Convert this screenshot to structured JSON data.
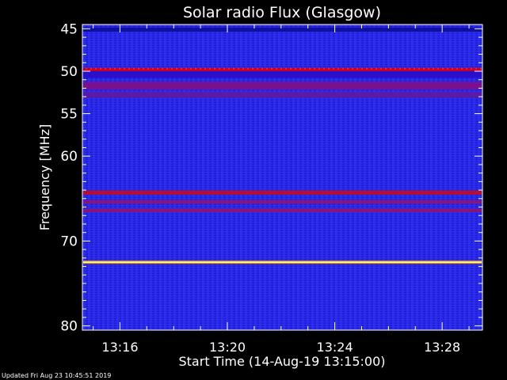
{
  "chart_data": {
    "type": "heatmap",
    "title": "Solar radio Flux (Glasgow)",
    "xlabel": "Start Time (14-Aug-19 13:15:00)",
    "ylabel": "Frequency [MHz]",
    "x_ticks": [
      "13:16",
      "13:20",
      "13:24",
      "13:28"
    ],
    "x_tick_minutes": [
      1,
      5,
      9,
      13
    ],
    "x_range_minutes": [
      -0.4,
      14.5
    ],
    "y_ticks": [
      45,
      50,
      55,
      60,
      70,
      80
    ],
    "y_range": [
      44.5,
      80.5
    ],
    "background_color": "#2020e0",
    "bands": [
      {
        "freq": 45.1,
        "width": 0.5,
        "color": "#1010a0"
      },
      {
        "freq": 49.8,
        "width": 0.4,
        "color": "#c00030"
      },
      {
        "freq": 50.4,
        "width": 0.8,
        "color": "#2a10c8"
      },
      {
        "freq": 51.7,
        "width": 0.9,
        "color": "#7a1090"
      },
      {
        "freq": 52.8,
        "width": 0.7,
        "color": "#5a1aa8"
      },
      {
        "freq": 64.3,
        "width": 0.5,
        "color": "#b0103a"
      },
      {
        "freq": 65.4,
        "width": 0.4,
        "color": "#8a1478"
      },
      {
        "freq": 66.4,
        "width": 0.4,
        "color": "#8a1478"
      },
      {
        "freq": 72.5,
        "width": 0.35,
        "color": "#ff9a00"
      },
      {
        "freq": 72.5,
        "width": 0.15,
        "color": "#ffff90"
      }
    ]
  },
  "footer": "Updated Fri Aug 23 10:45:51 2019"
}
